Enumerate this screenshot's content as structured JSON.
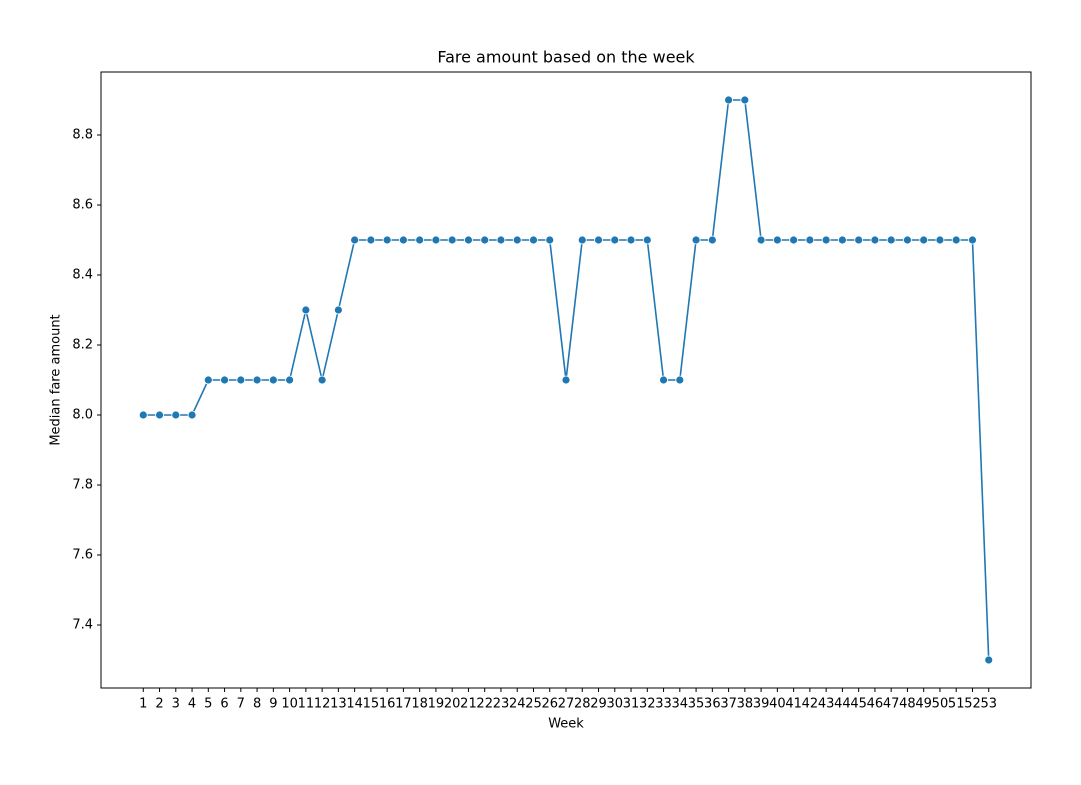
{
  "chart_data": {
    "type": "line",
    "title": "Fare amount based on the week",
    "xlabel": "Week",
    "ylabel": "Median fare amount",
    "x": [
      1,
      2,
      3,
      4,
      5,
      6,
      7,
      8,
      9,
      10,
      11,
      12,
      13,
      14,
      15,
      16,
      17,
      18,
      19,
      20,
      21,
      22,
      23,
      24,
      25,
      26,
      27,
      28,
      29,
      30,
      31,
      32,
      33,
      34,
      35,
      36,
      37,
      38,
      39,
      40,
      41,
      42,
      43,
      44,
      45,
      46,
      47,
      48,
      49,
      50,
      51,
      52,
      53
    ],
    "values": [
      8.0,
      8.0,
      8.0,
      8.0,
      8.1,
      8.1,
      8.1,
      8.1,
      8.1,
      8.1,
      8.3,
      8.1,
      8.3,
      8.5,
      8.5,
      8.5,
      8.5,
      8.5,
      8.5,
      8.5,
      8.5,
      8.5,
      8.5,
      8.5,
      8.5,
      8.5,
      8.1,
      8.5,
      8.5,
      8.5,
      8.5,
      8.5,
      8.1,
      8.1,
      8.5,
      8.5,
      8.9,
      8.9,
      8.5,
      8.5,
      8.5,
      8.5,
      8.5,
      8.5,
      8.5,
      8.5,
      8.5,
      8.5,
      8.5,
      8.5,
      8.5,
      8.5,
      7.3
    ],
    "color": "#1f77b4",
    "xlim": [
      -1.6,
      55.6
    ],
    "xticks": [
      1,
      2,
      3,
      4,
      5,
      6,
      7,
      8,
      9,
      10,
      11,
      12,
      13,
      14,
      15,
      16,
      17,
      18,
      19,
      20,
      21,
      22,
      23,
      24,
      25,
      26,
      27,
      28,
      29,
      30,
      31,
      32,
      33,
      34,
      35,
      36,
      37,
      38,
      39,
      40,
      41,
      42,
      43,
      44,
      45,
      46,
      47,
      48,
      49,
      50,
      51,
      52,
      53
    ],
    "ylim": [
      7.22,
      8.98
    ],
    "yticks": [
      7.4,
      7.6,
      7.8,
      {
        "value": 8,
        "label": "8.0"
      },
      8.2,
      8.4,
      8.6,
      8.8
    ]
  }
}
